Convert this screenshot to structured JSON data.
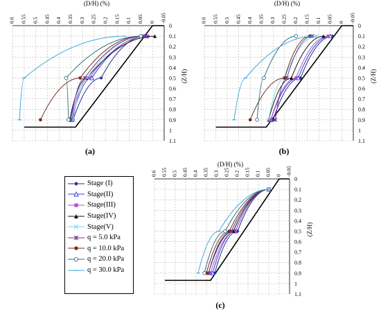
{
  "chart_data": [
    {
      "panel_label": "(a)",
      "type": "line",
      "xlabel": "(D/H) (%)",
      "ylabel": "(Z/H)",
      "x_ticks": [
        "0.6",
        "0.55",
        "0.5",
        "0.45",
        "0.4",
        "0.35",
        "0.3",
        "0.25",
        "0.2",
        "0.15",
        "0.1",
        "0.05",
        "0",
        "-0.05"
      ],
      "y_ticks": [
        "0",
        "0.1",
        "0.2",
        "0.3",
        "0.4",
        "0.5",
        "0.6",
        "0.7",
        "0.8",
        "0.9",
        "1",
        "1.1"
      ],
      "xlim": [
        -0.05,
        0.6
      ],
      "ylim": [
        0,
        1.1
      ],
      "x_reversed": true,
      "grid": true,
      "series": [
        {
          "name": "Stage (I)",
          "x": [
            0.03,
            0.22,
            0.34
          ],
          "y": [
            0.1,
            0.5,
            0.9
          ]
        },
        {
          "name": "Stage(II)",
          "x": [
            0.025,
            0.26,
            0.345
          ],
          "y": [
            0.1,
            0.5,
            0.9
          ]
        },
        {
          "name": "Stage(III)",
          "x": [
            0.02,
            0.27,
            0.35
          ],
          "y": [
            0.1,
            0.5,
            0.9
          ]
        },
        {
          "name": "Stage(IV)",
          "x": [
            -0.01,
            0.28,
            0.355
          ],
          "y": [
            0.1,
            0.5,
            0.9
          ]
        },
        {
          "name": "Stage(V)",
          "x": [
            0.04,
            0.28,
            0.34
          ],
          "y": [
            0.1,
            0.5,
            0.9
          ]
        },
        {
          "name": "q = 5.0 kPa",
          "x": [
            0.04,
            0.29,
            0.35
          ],
          "y": [
            0.1,
            0.5,
            0.9
          ]
        },
        {
          "name": "q = 10.0 kPa",
          "x": [
            0.05,
            0.31,
            0.48
          ],
          "y": [
            0.1,
            0.5,
            0.9
          ]
        },
        {
          "name": "q = 20.0 kPa",
          "x": [
            0.05,
            0.37,
            0.36
          ],
          "y": [
            0.1,
            0.5,
            0.9
          ]
        },
        {
          "name": "q = 30.0 kPa",
          "x": [
            0.12,
            0.55,
            0.57
          ],
          "y": [
            0.1,
            0.5,
            0.9
          ]
        }
      ]
    },
    {
      "panel_label": "(b)",
      "type": "line",
      "xlabel": "(D/H) (%)",
      "ylabel": "(Z/H)",
      "x_ticks": [
        "0.6",
        "0.55",
        "0.5",
        "0.45",
        "0.4",
        "0.35",
        "0.3",
        "0.25",
        "0.2",
        "0.15",
        "0.1",
        "0.05",
        "0",
        "-0.05"
      ],
      "y_ticks": [
        "0",
        "0.1",
        "0.2",
        "0.3",
        "0.4",
        "0.5",
        "0.6",
        "0.7",
        "0.8",
        "0.9",
        "1",
        "1.1"
      ],
      "xlim": [
        -0.05,
        0.6
      ],
      "ylim": [
        0,
        1.1
      ],
      "x_reversed": true,
      "grid": true,
      "series": [
        {
          "name": "Stage (I)",
          "x": [
            0.04,
            0.18,
            0.3
          ],
          "y": [
            0.1,
            0.5,
            0.9
          ]
        },
        {
          "name": "Stage(II)",
          "x": [
            0.05,
            0.19,
            0.31
          ],
          "y": [
            0.1,
            0.5,
            0.9
          ]
        },
        {
          "name": "Stage(III)",
          "x": [
            0.06,
            0.2,
            0.31
          ],
          "y": [
            0.1,
            0.5,
            0.9
          ]
        },
        {
          "name": "Stage(IV)",
          "x": [
            0.08,
            0.22,
            0.32
          ],
          "y": [
            0.1,
            0.5,
            0.9
          ]
        },
        {
          "name": "Stage(V)",
          "x": [
            0.11,
            0.25,
            0.32
          ],
          "y": [
            0.1,
            0.5,
            0.9
          ]
        },
        {
          "name": "q = 5.0 kPa",
          "x": [
            0.13,
            0.24,
            0.29
          ],
          "y": [
            0.1,
            0.5,
            0.9
          ]
        },
        {
          "name": "q = 10.0 kPa",
          "x": [
            0.14,
            0.25,
            0.4
          ],
          "y": [
            0.1,
            0.5,
            0.9
          ]
        },
        {
          "name": "q = 20.0 kPa",
          "x": [
            0.2,
            0.34,
            0.37
          ],
          "y": [
            0.1,
            0.5,
            0.9
          ]
        },
        {
          "name": "q = 30.0 kPa",
          "x": [
            0.12,
            0.42,
            0.47
          ],
          "y": [
            0.1,
            0.5,
            0.9
          ]
        }
      ]
    },
    {
      "panel_label": "(c)",
      "type": "line",
      "xlabel": "(D/H) (%)",
      "ylabel": "(Z/H)",
      "x_ticks": [
        "0.6",
        "0.55",
        "0.5",
        "0.45",
        "0.4",
        "0.35",
        "0.3",
        "0.25",
        "0.2",
        "0.15",
        "0.1",
        "0.05",
        "0",
        "-0.05"
      ],
      "y_ticks": [
        "0",
        "0.1",
        "0.2",
        "0.3",
        "0.4",
        "0.5",
        "0.6",
        "0.7",
        "0.8",
        "0.9",
        "1",
        "1.1"
      ],
      "xlim": [
        -0.05,
        0.6
      ],
      "ylim": [
        0,
        1.1
      ],
      "x_reversed": true,
      "grid": true,
      "series": [
        {
          "name": "Stage (I)",
          "x": [
            0.05,
            0.2,
            0.31
          ],
          "y": [
            0.1,
            0.5,
            0.9
          ]
        },
        {
          "name": "Stage(II)",
          "x": [
            0.05,
            0.21,
            0.32
          ],
          "y": [
            0.1,
            0.5,
            0.9
          ]
        },
        {
          "name": "Stage(III)",
          "x": [
            0.05,
            0.21,
            0.33
          ],
          "y": [
            0.1,
            0.5,
            0.9
          ]
        },
        {
          "name": "Stage(IV)",
          "x": [
            0.05,
            0.22,
            0.34
          ],
          "y": [
            0.1,
            0.5,
            0.9
          ]
        },
        {
          "name": "Stage(V)",
          "x": [
            0.05,
            0.23,
            0.34
          ],
          "y": [
            0.1,
            0.5,
            0.9
          ]
        },
        {
          "name": "q = 5.0 kPa",
          "x": [
            0.05,
            0.23,
            0.34
          ],
          "y": [
            0.1,
            0.5,
            0.9
          ]
        },
        {
          "name": "q = 10.0 kPa",
          "x": [
            0.05,
            0.24,
            0.35
          ],
          "y": [
            0.1,
            0.5,
            0.9
          ]
        },
        {
          "name": "q = 20.0 kPa",
          "x": [
            0.05,
            0.26,
            0.36
          ],
          "y": [
            0.1,
            0.5,
            0.9
          ]
        },
        {
          "name": "q = 30.0 kPa",
          "x": [
            0.05,
            0.29,
            0.39
          ],
          "y": [
            0.1,
            0.5,
            0.9
          ]
        }
      ]
    }
  ],
  "legend": {
    "items": [
      {
        "name": "Stage (I)",
        "color": "#1f2f8f",
        "marker": "diamond"
      },
      {
        "name": "Stage(II)",
        "color": "#2b3bd4",
        "marker": "triangle-open"
      },
      {
        "name": "Stage(III)",
        "color": "#b04bd9",
        "marker": "square"
      },
      {
        "name": "Stage(IV)",
        "color": "#111111",
        "marker": "triangle"
      },
      {
        "name": "Stage(V)",
        "color": "#7fd3e8",
        "marker": "x"
      },
      {
        "name": "q = 5.0 kPa",
        "color": "#6a3a8c",
        "marker": "star"
      },
      {
        "name": "q = 10.0 kPa",
        "color": "#7a2a1e",
        "marker": "circle"
      },
      {
        "name": "q = 20.0 kPa",
        "color": "#2f6f7a",
        "marker": "circle-open"
      },
      {
        "name": "q = 30.0 kPa",
        "color": "#3aa9d8",
        "marker": "dash"
      }
    ]
  }
}
